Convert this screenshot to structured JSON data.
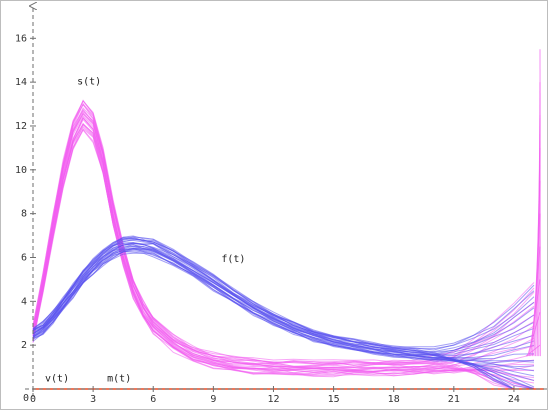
{
  "chart_data": {
    "type": "line",
    "title": "",
    "xlabel": "",
    "ylabel": "",
    "xlim": [
      0,
      25.5
    ],
    "ylim": [
      0,
      17.2
    ],
    "x_ticks": [
      0,
      3,
      6,
      9,
      12,
      15,
      18,
      21,
      24
    ],
    "y_ticks": [
      2,
      4,
      6,
      8,
      10,
      12,
      14,
      16
    ],
    "y_zero_label": "0",
    "grid": false,
    "colors": {
      "s": "#f25cf0",
      "f": "#5a52ee",
      "v": "#e4441e",
      "m": "#e4441e",
      "axis": "#6e6e6e"
    },
    "series": [
      {
        "name": "s(t)",
        "label_at": [
          2.2,
          13.9
        ],
        "x": [
          0,
          0.5,
          1,
          1.5,
          2,
          2.5,
          3,
          3.5,
          4,
          4.5,
          5,
          5.5,
          6,
          7,
          8,
          9,
          10,
          11,
          12,
          13,
          14,
          15,
          16,
          17,
          18,
          19,
          20,
          21,
          22,
          23,
          24,
          25
        ],
        "y": [
          2.5,
          4.8,
          7.4,
          9.8,
          11.6,
          12.5,
          12.0,
          10.4,
          8.0,
          6.1,
          4.6,
          3.6,
          2.9,
          2.1,
          1.6,
          1.3,
          1.15,
          1.05,
          1.0,
          0.97,
          0.95,
          0.95,
          0.95,
          0.97,
          0.98,
          1.0,
          1.05,
          1.1,
          1.2,
          1.3,
          1.4,
          1.5
        ],
        "band": 0.55
      },
      {
        "name": "f(t)",
        "label_at": [
          9.4,
          5.8
        ],
        "x": [
          0,
          0.5,
          1,
          1.5,
          2,
          2.5,
          3,
          3.5,
          4,
          4.5,
          5,
          5.5,
          6,
          7,
          8,
          9,
          10,
          11,
          12,
          13,
          14,
          15,
          16,
          17,
          18,
          19,
          20,
          21,
          22,
          23,
          24,
          25
        ],
        "y": [
          2.5,
          2.8,
          3.3,
          3.9,
          4.5,
          5.1,
          5.6,
          6.0,
          6.35,
          6.55,
          6.6,
          6.55,
          6.45,
          6.0,
          5.45,
          4.85,
          4.25,
          3.7,
          3.2,
          2.8,
          2.45,
          2.2,
          2.0,
          1.85,
          1.72,
          1.62,
          1.55,
          1.5,
          1.48,
          1.45,
          1.45,
          1.45
        ],
        "band": 0.4
      },
      {
        "name": "v(t)",
        "label_at": [
          0.6,
          0.35
        ],
        "x": [
          0,
          25.5
        ],
        "y": [
          0,
          0
        ]
      },
      {
        "name": "m(t)",
        "label_at": [
          3.7,
          0.35
        ],
        "x": [
          0,
          25.5
        ],
        "y": [
          0,
          0
        ]
      }
    ]
  }
}
